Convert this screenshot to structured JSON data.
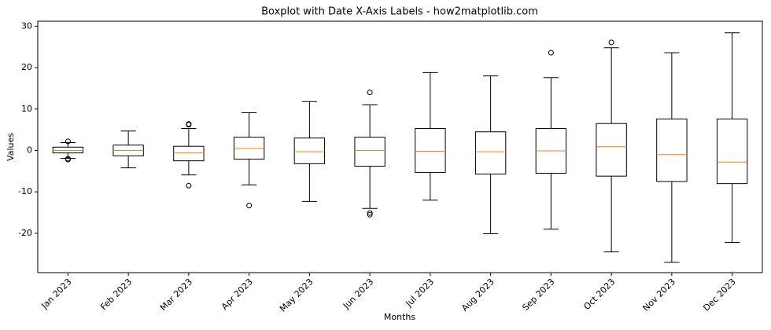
{
  "chart_data": {
    "type": "boxplot",
    "title": "Boxplot with Date X-Axis Labels - how2matplotlib.com",
    "x_label": "Months",
    "y_label": "Values",
    "categories": [
      "Jan 2023",
      "Feb 2023",
      "Mar 2023",
      "Apr 2023",
      "May 2023",
      "Jun 2023",
      "Jul 2023",
      "Aug 2023",
      "Sep 2023",
      "Oct 2023",
      "Nov 2023",
      "Dec 2023"
    ],
    "box_color": "#000000",
    "median_color": "#ff7f0e",
    "boxes": [
      {
        "whislo": -1.9,
        "q1": -0.6,
        "med": 0,
        "q3": 0.8,
        "whishi": 1.9,
        "fliers": [
          2.2,
          -2.0,
          -2.2
        ]
      },
      {
        "whislo": -4.2,
        "q1": -1.3,
        "med": 0,
        "q3": 1.3,
        "whishi": 4.7,
        "fliers": []
      },
      {
        "whislo": -5.9,
        "q1": -2.5,
        "med": -0.6,
        "q3": 1.0,
        "whishi": 5.3,
        "fliers": [
          6.2,
          6.4,
          -8.5
        ]
      },
      {
        "whislo": -8.3,
        "q1": -2.1,
        "med": 0.5,
        "q3": 3.2,
        "whishi": 9.1,
        "fliers": [
          -13.3
        ]
      },
      {
        "whislo": -12.3,
        "q1": -3.2,
        "med": -0.3,
        "q3": 3.0,
        "whishi": 11.8,
        "fliers": []
      },
      {
        "whislo": -14,
        "q1": -3.8,
        "med": 0,
        "q3": 3.2,
        "whishi": 11,
        "fliers": [
          14,
          -15.1,
          -15.5
        ]
      },
      {
        "whislo": -12,
        "q1": -5.3,
        "med": -0.2,
        "q3": 5.3,
        "whishi": 18.8,
        "fliers": []
      },
      {
        "whislo": -20.1,
        "q1": -5.7,
        "med": -0.3,
        "q3": 4.5,
        "whishi": 18,
        "fliers": []
      },
      {
        "whislo": -19,
        "q1": -5.5,
        "med": -0.1,
        "q3": 5.3,
        "whishi": 17.6,
        "fliers": [
          23.6
        ]
      },
      {
        "whislo": -24.5,
        "q1": -6.2,
        "med": 0.9,
        "q3": 6.5,
        "whishi": 24.8,
        "fliers": [
          26.1
        ]
      },
      {
        "whislo": -27,
        "q1": -7.5,
        "med": -1.0,
        "q3": 7.6,
        "whishi": 23.6,
        "fliers": []
      },
      {
        "whislo": -22.2,
        "q1": -8.0,
        "med": -2.8,
        "q3": 7.6,
        "whishi": 28.4,
        "fliers": []
      }
    ],
    "ylim": [
      -29.5,
      31.2
    ],
    "yticks": [
      -20,
      -10,
      0,
      10,
      20,
      30
    ]
  }
}
